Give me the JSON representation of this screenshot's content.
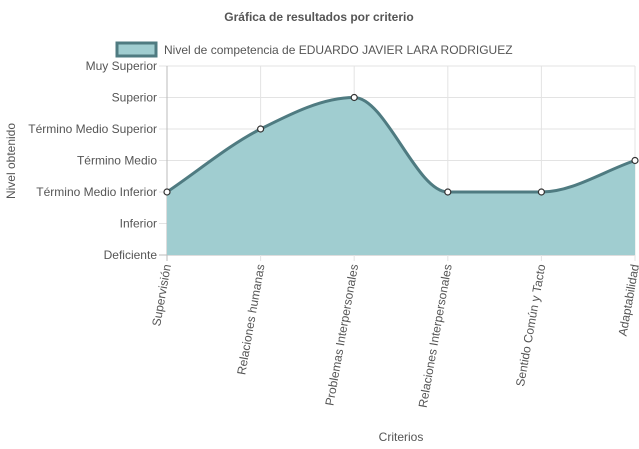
{
  "chart_data": {
    "type": "area",
    "title": "Gráfica de resultados por criterio",
    "xlabel": "Criterios",
    "ylabel": "Nivel obtenido",
    "levels": [
      "Deficiente",
      "Inferior",
      "Término Medio Inferior",
      "Término Medio",
      "Término Medio Superior",
      "Superior",
      "Muy Superior"
    ],
    "categories": [
      "Supervisión",
      "Relaciones humanas",
      "Problemas Interpersonales",
      "Relaciones Interpersonales",
      "Sentido Común y Tacto",
      "Adaptabilidad"
    ],
    "series": [
      {
        "name": "Nivel de competencia de EDUARDO JAVIER LARA RODRIGUEZ",
        "values": [
          "Término Medio Inferior",
          "Término Medio Superior",
          "Superior",
          "Término Medio Inferior",
          "Término Medio Inferior",
          "Término Medio"
        ],
        "fill_color": "#a0cdd0",
        "line_color": "#4f7b81"
      }
    ],
    "grid": true,
    "legend_position": "top"
  }
}
